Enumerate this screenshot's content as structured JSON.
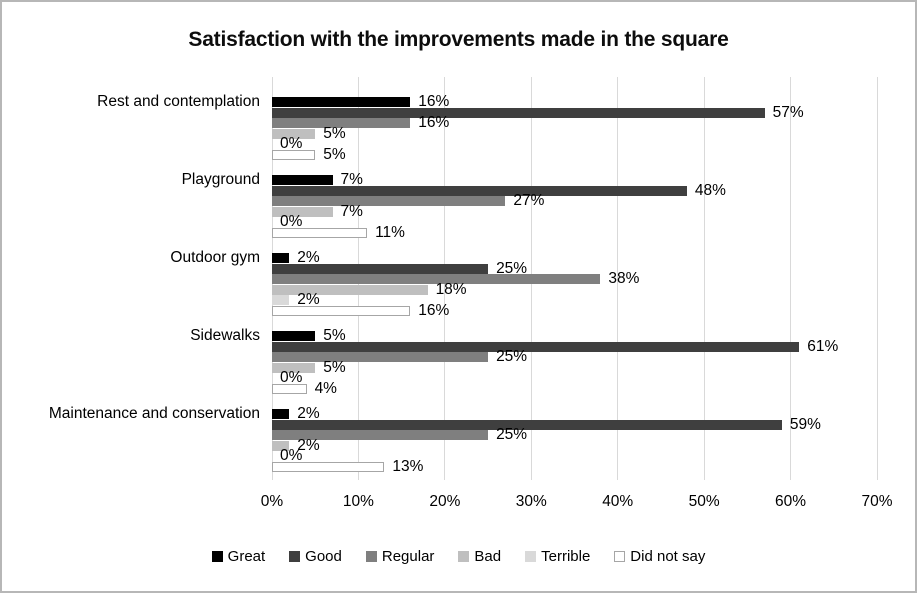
{
  "title": "Satisfaction with the improvements made in the square",
  "chart_data": {
    "type": "bar",
    "orientation": "horizontal",
    "title": "Satisfaction with the improvements made in the square",
    "unit": "%",
    "categories": [
      "Rest and contemplation",
      "Playground",
      "Outdoor gym",
      "Sidewalks",
      "Maintenance and conservation"
    ],
    "series": [
      {
        "name": "Great",
        "color": "#000000",
        "values": [
          16,
          7,
          2,
          5,
          2
        ]
      },
      {
        "name": "Good",
        "color": "#3f3f3f",
        "values": [
          57,
          48,
          25,
          61,
          59
        ]
      },
      {
        "name": "Regular",
        "color": "#7f7f7f",
        "values": [
          16,
          27,
          38,
          25,
          25
        ]
      },
      {
        "name": "Bad",
        "color": "#bfbfbf",
        "values": [
          5,
          7,
          18,
          5,
          2
        ]
      },
      {
        "name": "Terrible",
        "color": "#d9d9d9",
        "values": [
          0,
          0,
          2,
          0,
          0
        ]
      },
      {
        "name": "Did not say",
        "color": "#ffffff",
        "border_color": "#a6a6a6",
        "values": [
          5,
          11,
          16,
          4,
          13
        ]
      }
    ],
    "x_ticks": [
      "0%",
      "10%",
      "20%",
      "30%",
      "40%",
      "50%",
      "60%",
      "70%"
    ],
    "xlabel": "",
    "ylabel": "",
    "xlim": [
      0,
      70
    ],
    "grid": true,
    "legend_position": "bottom",
    "colors": {
      "gridline": "#d9d9d9",
      "frame_border": "#b7b7b7",
      "text": "#000000"
    }
  }
}
